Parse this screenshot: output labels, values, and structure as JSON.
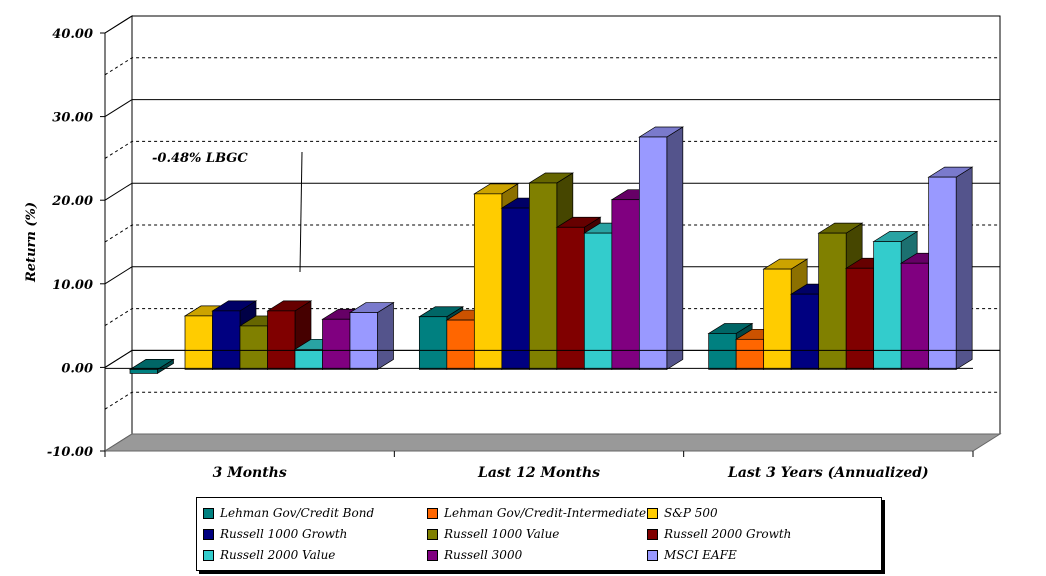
{
  "chart_data": {
    "type": "bar",
    "ylabel": "Return (%)",
    "ylim": [
      -10,
      40
    ],
    "yticks": [
      "40.00",
      "30.00",
      "20.00",
      "10.00",
      "0.00",
      "-10.00"
    ],
    "grid": "on",
    "legend_placement": "bottom",
    "categories": [
      "3 Months",
      "Last 12 Months",
      "Last 3 Years (Annualized)"
    ],
    "series": [
      {
        "name": "Lehman Gov/Credit Bond",
        "color": "#008080",
        "values": [
          -0.48,
          6.3,
          4.3
        ]
      },
      {
        "name": "Lehman Gov/Credit-Intermediate",
        "color": "#FF6600",
        "values": [
          null,
          5.9,
          3.6
        ]
      },
      {
        "name": "S&P 500",
        "color": "#FFCC00",
        "values": [
          6.4,
          21.0,
          12.0
        ]
      },
      {
        "name": "Russell 1000 Growth",
        "color": "#000080",
        "values": [
          7.0,
          19.3,
          9.0
        ]
      },
      {
        "name": "Russell 1000 Value",
        "color": "#808000",
        "values": [
          5.2,
          22.3,
          16.3
        ]
      },
      {
        "name": "Russell 2000 Growth",
        "color": "#800000",
        "values": [
          7.0,
          17.0,
          12.1
        ]
      },
      {
        "name": "Russell 2000 Value",
        "color": "#33CCCC",
        "values": [
          2.4,
          16.3,
          15.3
        ]
      },
      {
        "name": "Russell 3000",
        "color": "#800080",
        "values": [
          6.0,
          20.3,
          12.7
        ]
      },
      {
        "name": "MSCI EAFE",
        "color": "#9999FF",
        "values": [
          6.8,
          27.8,
          23.0
        ]
      }
    ],
    "annotations": [
      {
        "text": "-0.48% LBGC",
        "category": "3 Months"
      }
    ]
  }
}
